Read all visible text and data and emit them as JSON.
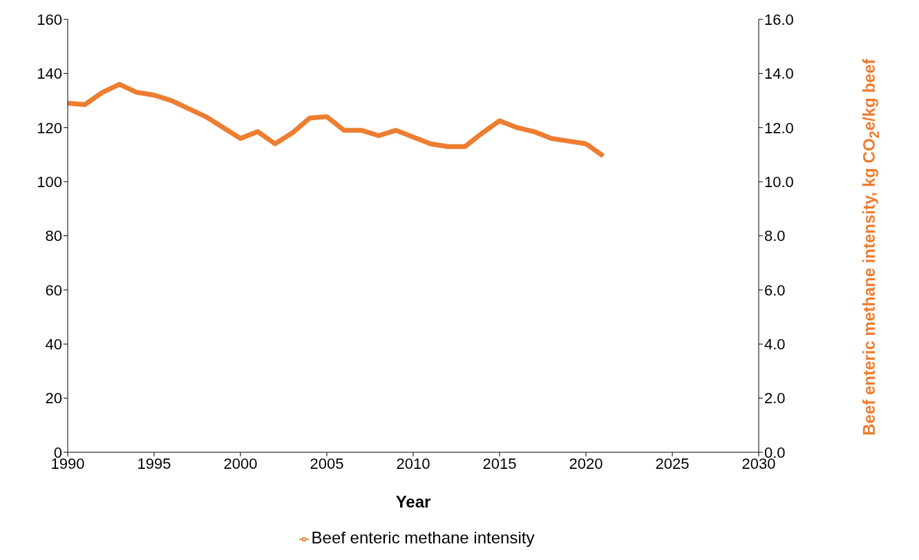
{
  "chart_data": {
    "type": "line",
    "xlabel": "Year",
    "y2label": "Beef enteric methane intensity,  kg CO$_{2}$e/kg beef",
    "x": [
      1990,
      1991,
      1992,
      1993,
      1994,
      1995,
      1996,
      1997,
      1998,
      1999,
      2000,
      2001,
      2002,
      2003,
      2004,
      2005,
      2006,
      2007,
      2008,
      2009,
      2010,
      2011,
      2012,
      2013,
      2014,
      2015,
      2016,
      2017,
      2018,
      2019,
      2020,
      2021
    ],
    "series": [
      {
        "name": "Beef enteric methane intensity",
        "color": "#ed7d31",
        "axis": "y2",
        "values": [
          12.9,
          12.85,
          13.3,
          13.6,
          13.3,
          13.2,
          13.0,
          12.7,
          12.4,
          12.0,
          11.6,
          11.85,
          11.4,
          11.8,
          12.35,
          12.4,
          11.9,
          11.9,
          11.7,
          11.9,
          11.65,
          11.4,
          11.3,
          11.3,
          11.8,
          12.25,
          12.0,
          11.85,
          11.6,
          11.5,
          11.4,
          10.95
        ]
      }
    ],
    "xlim": [
      1990,
      2030
    ],
    "xticks": [
      1990,
      1995,
      2000,
      2005,
      2010,
      2015,
      2020,
      2025,
      2030
    ],
    "ylim": [
      0,
      160
    ],
    "yticks": [
      0,
      20,
      40,
      60,
      80,
      100,
      120,
      140,
      160
    ],
    "y2lim": [
      0,
      16
    ],
    "y2ticks": [
      {
        "value": 0,
        "label": "0.0"
      },
      {
        "value": 2,
        "label": "2.0"
      },
      {
        "value": 4,
        "label": "4.0"
      },
      {
        "value": 6,
        "label": "6.0"
      },
      {
        "value": 8,
        "label": "8.0"
      },
      {
        "value": 10,
        "label": "10.0"
      },
      {
        "value": 12,
        "label": "12.0"
      },
      {
        "value": 14,
        "label": "14.0"
      },
      {
        "value": 16,
        "label": "16.0"
      }
    ],
    "grid": false,
    "legend": "bottom",
    "marker": "none",
    "line_style": "solid"
  }
}
